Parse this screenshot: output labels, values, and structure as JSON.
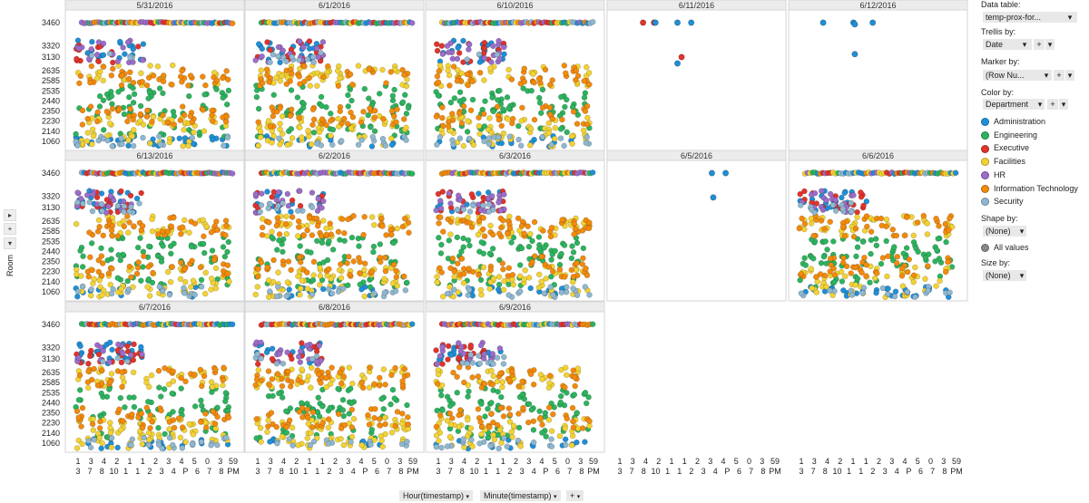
{
  "chart_data": {
    "type": "scatter",
    "title": "",
    "xlabel": "Hour(timestamp) / Minute(timestamp)",
    "ylabel": "Room",
    "trellis_by": "Date",
    "panels": [
      "5/31/2016",
      "6/1/2016",
      "6/10/2016",
      "6/11/2016",
      "6/12/2016",
      "6/13/2016",
      "6/2/2016",
      "6/3/2016",
      "6/5/2016",
      "6/6/2016",
      "6/7/2016",
      "6/8/2016",
      "6/9/2016"
    ],
    "sparse_panels": {
      "6/11/2016": [
        [
          4,
          3460,
          "Administration"
        ],
        [
          5,
          3460,
          "Administration"
        ],
        [
          1.5,
          3460,
          "Executive"
        ],
        [
          2.3,
          3460,
          "Executive"
        ],
        [
          2.4,
          3460,
          "Administration"
        ],
        [
          4.3,
          3130,
          "Executive"
        ],
        [
          4.0,
          2900,
          "Administration"
        ]
      ],
      "6/12/2016": [
        [
          3.6,
          3460,
          "Administration"
        ],
        [
          3.7,
          3450,
          "Administration"
        ],
        [
          5.0,
          3460,
          "Administration"
        ],
        [
          1.4,
          3460,
          "Administration"
        ],
        [
          3.7,
          3180,
          "Administration"
        ]
      ],
      "6/5/2016": [
        [
          6.5,
          3460,
          "Administration"
        ],
        [
          7.5,
          3460,
          "Administration"
        ],
        [
          6.6,
          3300,
          "Administration"
        ]
      ]
    },
    "y_categories": [
      "1060",
      "2140",
      "2230",
      "2350",
      "2440",
      "2535",
      "2585",
      "2635",
      "3130",
      "3320",
      "3460"
    ],
    "x_tick_labels": [
      "1",
      "3",
      "3",
      "7",
      "4",
      "8",
      "2",
      "10",
      "1",
      "1",
      "2",
      "1",
      "3",
      "3",
      "4",
      "4",
      "5",
      "P",
      "0",
      "6",
      "3",
      "7",
      "5",
      "8",
      "9",
      "PM"
    ],
    "x_tick_rows": [
      [
        "1",
        "3",
        "4",
        "2",
        "1",
        "1",
        "2",
        "3",
        "4",
        "5",
        "0",
        "3",
        "59"
      ],
      [
        "3",
        "7",
        "8",
        "10",
        "1",
        "1",
        "2",
        "3",
        "4",
        "P",
        "6",
        "7",
        "8",
        "PM"
      ]
    ],
    "series": [
      {
        "name": "Administration",
        "color": "#1f8fd6",
        "rooms": [
          "3320",
          "3130",
          "3460",
          "1060"
        ]
      },
      {
        "name": "Engineering",
        "color": "#2db35e",
        "rooms": [
          "2535",
          "2440",
          "2350",
          "2140",
          "3460"
        ]
      },
      {
        "name": "Executive",
        "color": "#e0342c",
        "rooms": [
          "3320",
          "3130",
          "3460"
        ]
      },
      {
        "name": "Facilities",
        "color": "#f2d234",
        "rooms": [
          "2230",
          "2140",
          "1060",
          "2635",
          "2585"
        ]
      },
      {
        "name": "HR",
        "color": "#9b6dc8",
        "rooms": [
          "3320",
          "3130"
        ]
      },
      {
        "name": "Information Technology",
        "color": "#f28a0c",
        "rooms": [
          "2635",
          "2585",
          "2350",
          "2230",
          "3460"
        ]
      },
      {
        "name": "Security",
        "color": "#8fb7cf",
        "rooms": [
          "1060",
          "3130"
        ]
      }
    ]
  },
  "axis": {
    "y_title": "Room",
    "x_controls": [
      "Hour(timestamp)",
      "Minute(timestamp)"
    ]
  },
  "side_panel": {
    "data_table_label": "Data table:",
    "data_table_value": "temp-prox-for...",
    "trellis_label": "Trellis by:",
    "trellis_value": "Date",
    "marker_label": "Marker by:",
    "marker_value": "(Row Nu...",
    "color_label": "Color by:",
    "color_value": "Department",
    "shape_label": "Shape by:",
    "shape_value": "(None)",
    "shape_legend": "All values",
    "size_label": "Size by:",
    "size_value": "(None)",
    "plus": "+",
    "caret": "▾"
  }
}
